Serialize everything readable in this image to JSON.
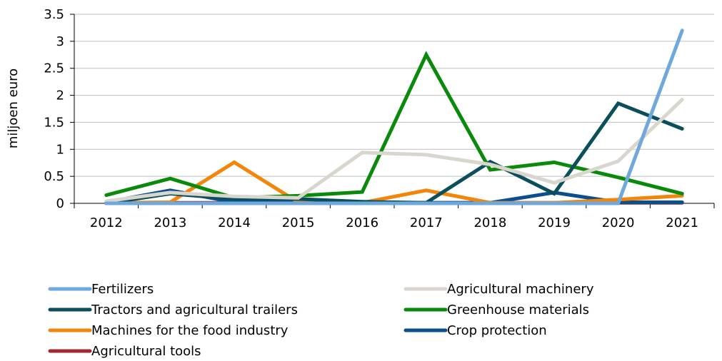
{
  "chart_data": {
    "type": "line",
    "title": "",
    "xlabel": "",
    "ylabel": "miljoen euro",
    "ylim": [
      0,
      3.5
    ],
    "yticks": [
      "0",
      "0.5",
      "1",
      "1.5",
      "2",
      "2.5",
      "3",
      "3.5"
    ],
    "categories": [
      "2012",
      "2013",
      "2014",
      "2015",
      "2016",
      "2017",
      "2018",
      "2019",
      "2020",
      "2021"
    ],
    "grid": true,
    "legend_position": "bottom",
    "series": [
      {
        "name": "Fertilizers",
        "color": "#6fa8dc",
        "values": [
          0,
          0,
          0,
          0,
          0,
          0,
          0,
          0,
          0,
          3.2
        ]
      },
      {
        "name": "Agricultural machinery",
        "color": "#d9d6ce",
        "values": [
          0.04,
          0.2,
          0.13,
          0.1,
          0.94,
          0.9,
          0.72,
          0.38,
          0.78,
          1.92
        ]
      },
      {
        "name": "Tractors and agricultural trailers",
        "color": "#0b4f5c",
        "values": [
          0,
          0.18,
          0.08,
          0.08,
          0.03,
          0.01,
          0.77,
          0.18,
          1.85,
          1.38
        ]
      },
      {
        "name": "Greenhouse materials",
        "color": "#0a8a0a",
        "values": [
          0.15,
          0.46,
          0.1,
          0.14,
          0.21,
          2.75,
          0.62,
          0.76,
          0.48,
          0.18
        ]
      },
      {
        "name": "Machines for the food industry",
        "color": "#f2850a",
        "values": [
          0.01,
          0.02,
          0.76,
          0.02,
          0.01,
          0.24,
          0.01,
          0.01,
          0.07,
          0.14
        ]
      },
      {
        "name": "Crop protection",
        "color": "#0b4f8c",
        "values": [
          0.02,
          0.24,
          0.02,
          0.02,
          0.02,
          0.01,
          0.01,
          0.2,
          0.02,
          0.02
        ]
      },
      {
        "name": "Agricultural tools",
        "color": "#a3282f",
        "values": [
          0.01,
          0.01,
          0.01,
          0.01,
          0.01,
          0.01,
          0.01,
          0.01,
          0.01,
          0.01
        ]
      }
    ]
  }
}
